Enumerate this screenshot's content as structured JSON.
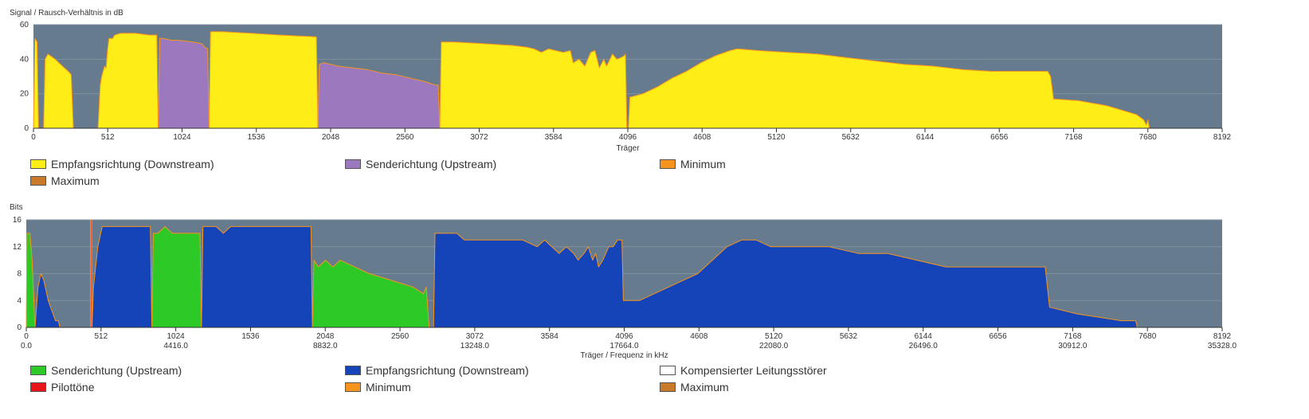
{
  "colors": {
    "plot_bg": "#667B8E",
    "grid": "#7E91A1",
    "downstream_snr": "#FFED17",
    "upstream_snr": "#9C78BE",
    "minimum": "#F7941D",
    "maximum": "#C8792A",
    "bits_upstream": "#2DC927",
    "bits_downstream": "#1444B8",
    "pilot": "#E8151B",
    "compensated": "#FFFFFF"
  },
  "chart_data": [
    {
      "type": "area",
      "ylabel": "Signal / Rausch-Verhältnis in dB",
      "xlabel": "Träger",
      "xlim": [
        0,
        8192
      ],
      "ylim": [
        0,
        60
      ],
      "yticks": [
        0,
        20,
        40,
        60
      ],
      "xticks": [
        "0",
        "512",
        "1024",
        "1536",
        "2048",
        "2560",
        "3072",
        "3584",
        "4096",
        "4608",
        "5120",
        "5632",
        "6144",
        "6656",
        "7168",
        "7680",
        "8192"
      ],
      "legend": [
        {
          "label": "Empfangsrichtung (Downstream)",
          "color": "#FFED17"
        },
        {
          "label": "Senderichtung (Upstream)",
          "color": "#9C78BE"
        },
        {
          "label": "Minimum",
          "color": "#F7941D"
        },
        {
          "label": "Maximum",
          "color": "#C8792A"
        }
      ],
      "series": [
        {
          "name": "Empfangsrichtung (Downstream)",
          "color": "#FFED17",
          "segments": [
            [
              [
                0,
                0
              ],
              [
                10,
                52
              ],
              [
                25,
                50
              ],
              [
                35,
                0
              ]
            ],
            [
              [
                70,
                0
              ],
              [
                80,
                40
              ],
              [
                100,
                43
              ],
              [
                150,
                40
              ],
              [
                200,
                36
              ],
              [
                240,
                33
              ],
              [
                260,
                31
              ],
              [
                275,
                0
              ]
            ],
            [
              [
                445,
                0
              ],
              [
                460,
                25
              ],
              [
                470,
                30
              ],
              [
                490,
                36
              ],
              [
                500,
                35
              ],
              [
                510,
                45
              ],
              [
                520,
                52
              ],
              [
                545,
                52
              ],
              [
                560,
                54
              ],
              [
                600,
                55
              ],
              [
                700,
                55
              ],
              [
                800,
                54
              ],
              [
                850,
                54
              ],
              [
                860,
                0
              ]
            ],
            [
              [
                1210,
                0
              ],
              [
                1220,
                56
              ],
              [
                1300,
                56
              ],
              [
                1500,
                55
              ],
              [
                1700,
                54
              ],
              [
                1950,
                53
              ],
              [
                1960,
                0
              ]
            ],
            [
              [
                2800,
                0
              ],
              [
                2810,
                50
              ],
              [
                2900,
                50
              ],
              [
                3100,
                49
              ],
              [
                3300,
                48
              ],
              [
                3400,
                47
              ],
              [
                3450,
                46
              ],
              [
                3500,
                44
              ],
              [
                3550,
                46
              ],
              [
                3600,
                45
              ],
              [
                3650,
                44
              ],
              [
                3700,
                45
              ],
              [
                3720,
                38
              ],
              [
                3760,
                40
              ],
              [
                3800,
                36
              ],
              [
                3840,
                44
              ],
              [
                3870,
                45
              ],
              [
                3900,
                35
              ],
              [
                3930,
                40
              ],
              [
                3950,
                36
              ],
              [
                3990,
                43
              ],
              [
                4020,
                40
              ],
              [
                4050,
                41
              ],
              [
                4070,
                42
              ],
              [
                4080,
                43
              ],
              [
                4090,
                0
              ]
            ],
            [
              [
                4100,
                0
              ],
              [
                4110,
                18
              ],
              [
                4200,
                20
              ],
              [
                4300,
                24
              ],
              [
                4400,
                29
              ],
              [
                4500,
                33
              ],
              [
                4600,
                38
              ],
              [
                4700,
                42
              ],
              [
                4800,
                45
              ],
              [
                4850,
                46
              ],
              [
                5000,
                45
              ],
              [
                5200,
                44
              ],
              [
                5400,
                43
              ],
              [
                5600,
                41
              ],
              [
                5800,
                39
              ],
              [
                6000,
                37
              ],
              [
                6200,
                36
              ],
              [
                6400,
                34
              ],
              [
                6600,
                33
              ],
              [
                6800,
                33
              ],
              [
                6990,
                33
              ],
              [
                7010,
                30
              ],
              [
                7030,
                17
              ],
              [
                7200,
                16
              ],
              [
                7400,
                13
              ],
              [
                7600,
                8
              ],
              [
                7650,
                5
              ],
              [
                7670,
                2
              ],
              [
                7680,
                5
              ],
              [
                7690,
                0
              ]
            ]
          ]
        },
        {
          "name": "Senderichtung (Upstream)",
          "color": "#9C78BE",
          "segments": [
            [
              [
                860,
                0
              ],
              [
                870,
                52
              ],
              [
                900,
                52
              ],
              [
                950,
                51
              ],
              [
                1000,
                51
              ],
              [
                1100,
                50
              ],
              [
                1160,
                49
              ],
              [
                1180,
                47
              ],
              [
                1200,
                46
              ],
              [
                1210,
                0
              ]
            ],
            [
              [
                1960,
                0
              ],
              [
                1970,
                37
              ],
              [
                2000,
                38
              ],
              [
                2100,
                36
              ],
              [
                2200,
                35
              ],
              [
                2300,
                34
              ],
              [
                2400,
                32
              ],
              [
                2500,
                31
              ],
              [
                2600,
                29
              ],
              [
                2700,
                27
              ],
              [
                2770,
                25
              ],
              [
                2790,
                25
              ],
              [
                2800,
                0
              ]
            ]
          ]
        }
      ]
    },
    {
      "type": "area",
      "ylabel": "Bits",
      "xlabel": "Träger / Frequenz in kHz",
      "xlim": [
        0,
        8192
      ],
      "ylim": [
        0,
        16
      ],
      "yticks": [
        0,
        4,
        8,
        12,
        16
      ],
      "xticks": [
        "0",
        "512",
        "1024",
        "1536",
        "2048",
        "2560",
        "3072",
        "3584",
        "4096",
        "4608",
        "5120",
        "5632",
        "6144",
        "6656",
        "7168",
        "7680",
        "8192"
      ],
      "xticks_secondary": [
        "0.0",
        "4416.0",
        "8832.0",
        "13248.0",
        "17664.0",
        "22080.0",
        "26496.0",
        "30912.0",
        "35328.0"
      ],
      "legend": [
        {
          "label": "Senderichtung (Upstream)",
          "color": "#2DC927"
        },
        {
          "label": "Empfangsrichtung (Downstream)",
          "color": "#1444B8"
        },
        {
          "label": "Kompensierter Leitungsstörer",
          "color": "#FFFFFF"
        },
        {
          "label": "Pilottöne",
          "color": "#E8151B"
        },
        {
          "label": "Minimum",
          "color": "#F7941D"
        },
        {
          "label": "Maximum",
          "color": "#C8792A"
        }
      ],
      "series": [
        {
          "name": "Senderichtung (Upstream)",
          "color": "#2DC927",
          "segments": [
            [
              [
                0,
                0
              ],
              [
                5,
                14
              ],
              [
                25,
                14
              ],
              [
                40,
                10
              ],
              [
                60,
                0
              ]
            ],
            [
              [
                860,
                0
              ],
              [
                870,
                14
              ],
              [
                900,
                14
              ],
              [
                950,
                15
              ],
              [
                1000,
                14
              ],
              [
                1100,
                14
              ],
              [
                1190,
                14
              ],
              [
                1200,
                0
              ]
            ],
            [
              [
                1960,
                0
              ],
              [
                1970,
                10
              ],
              [
                2000,
                9
              ],
              [
                2050,
                10
              ],
              [
                2100,
                9
              ],
              [
                2150,
                10
              ],
              [
                2250,
                9
              ],
              [
                2350,
                8
              ],
              [
                2500,
                7
              ],
              [
                2650,
                6
              ],
              [
                2720,
                5
              ],
              [
                2740,
                6
              ],
              [
                2760,
                0
              ]
            ]
          ]
        },
        {
          "name": "Empfangsrichtung (Downstream)",
          "color": "#1444B8",
          "segments": [
            [
              [
                60,
                0
              ],
              [
                80,
                6
              ],
              [
                100,
                8
              ],
              [
                120,
                7
              ],
              [
                150,
                4
              ],
              [
                200,
                1
              ],
              [
                220,
                1
              ],
              [
                230,
                0
              ]
            ],
            [
              [
                450,
                0
              ],
              [
                460,
                6
              ],
              [
                490,
                12
              ],
              [
                520,
                15
              ],
              [
                600,
                15
              ],
              [
                700,
                15
              ],
              [
                800,
                15
              ],
              [
                850,
                15
              ],
              [
                860,
                0
              ]
            ],
            [
              [
                1200,
                0
              ],
              [
                1210,
                15
              ],
              [
                1300,
                15
              ],
              [
                1350,
                14
              ],
              [
                1400,
                15
              ],
              [
                1500,
                15
              ],
              [
                1800,
                15
              ],
              [
                1950,
                15
              ],
              [
                1960,
                0
              ]
            ],
            [
              [
                2790,
                0
              ],
              [
                2800,
                14
              ],
              [
                2950,
                14
              ],
              [
                3000,
                13
              ],
              [
                3200,
                13
              ],
              [
                3400,
                13
              ],
              [
                3500,
                12
              ],
              [
                3550,
                13
              ],
              [
                3600,
                12
              ],
              [
                3650,
                11
              ],
              [
                3700,
                12
              ],
              [
                3750,
                11
              ],
              [
                3780,
                10
              ],
              [
                3820,
                11
              ],
              [
                3850,
                12
              ],
              [
                3880,
                10
              ],
              [
                3900,
                11
              ],
              [
                3920,
                9
              ],
              [
                3950,
                10
              ],
              [
                3990,
                12
              ],
              [
                4020,
                12
              ],
              [
                4050,
                13
              ],
              [
                4080,
                13
              ],
              [
                4090,
                4
              ],
              [
                4200,
                4
              ],
              [
                4300,
                5
              ],
              [
                4400,
                6
              ],
              [
                4500,
                7
              ],
              [
                4600,
                8
              ],
              [
                4700,
                10
              ],
              [
                4800,
                12
              ],
              [
                4900,
                13
              ],
              [
                5000,
                13
              ],
              [
                5100,
                12
              ],
              [
                5300,
                12
              ],
              [
                5500,
                12
              ],
              [
                5700,
                11
              ],
              [
                5900,
                11
              ],
              [
                6100,
                10
              ],
              [
                6300,
                9
              ],
              [
                6500,
                9
              ],
              [
                6700,
                9
              ],
              [
                6980,
                9
              ],
              [
                7010,
                3
              ],
              [
                7200,
                2
              ],
              [
                7500,
                1
              ],
              [
                7600,
                1
              ],
              [
                7610,
                0
              ]
            ]
          ]
        },
        {
          "name": "Pilottöne",
          "color": "#E8151B",
          "segments": [
            [
              [
                440,
                0
              ],
              [
                440,
                16
              ],
              [
                448,
                16
              ],
              [
                448,
                0
              ]
            ]
          ]
        }
      ]
    }
  ]
}
